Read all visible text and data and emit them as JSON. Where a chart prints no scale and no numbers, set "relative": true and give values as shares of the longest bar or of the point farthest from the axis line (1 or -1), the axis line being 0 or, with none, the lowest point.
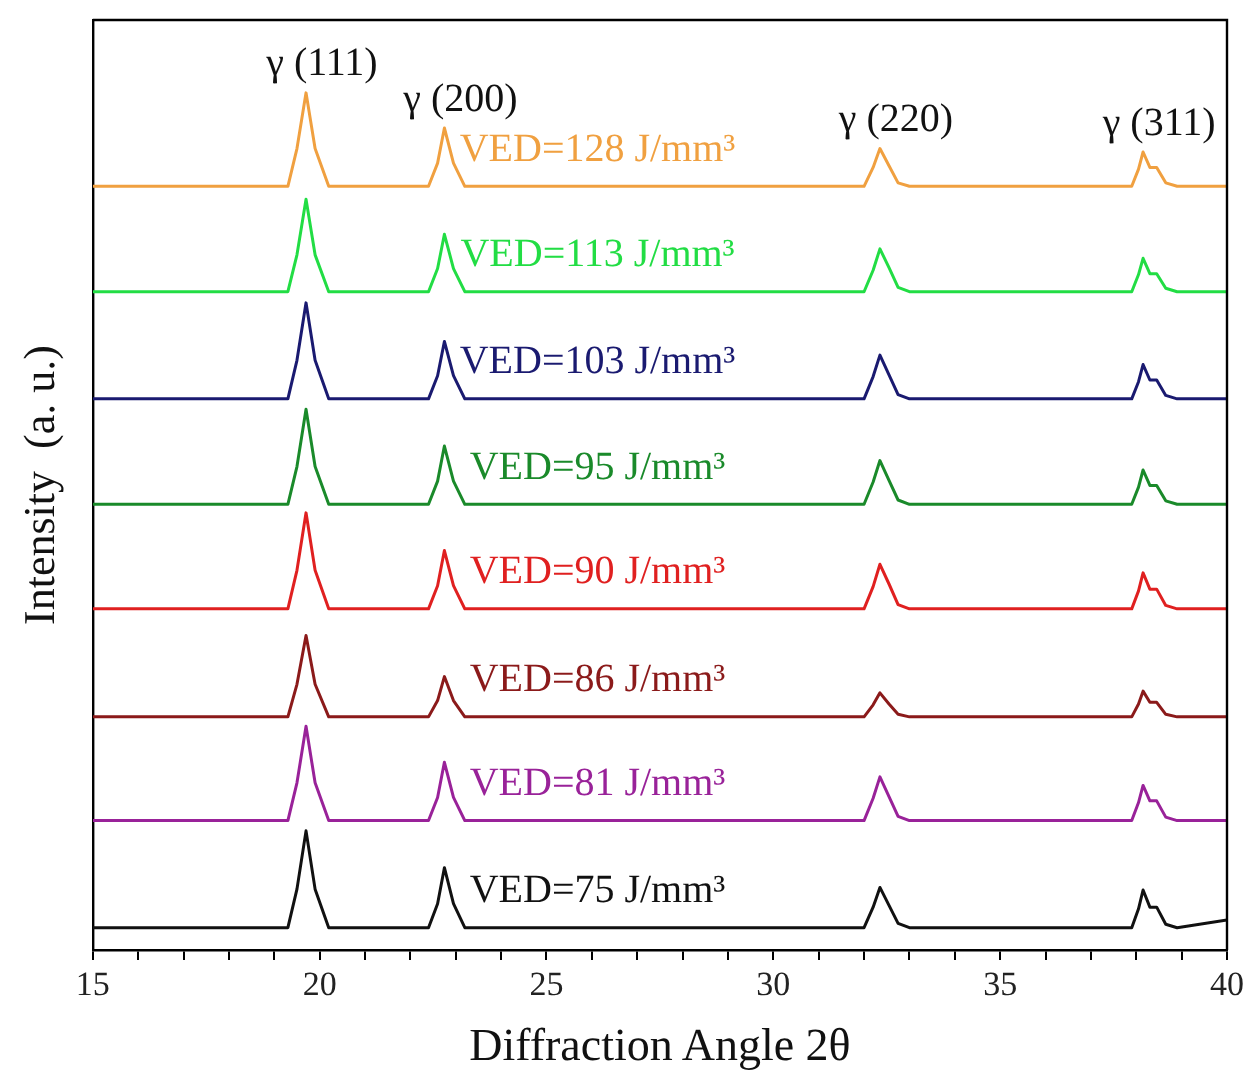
{
  "chart_data": {
    "type": "line",
    "relative": true,
    "xlabel": "Diffraction Angle 2θ",
    "ylabel": "Intensity  (a. u.)",
    "x": [
      15,
      19.3,
      19.5,
      19.7,
      19.9,
      20.2,
      22.4,
      22.6,
      22.75,
      22.95,
      23.2,
      32.0,
      32.2,
      32.35,
      32.55,
      32.75,
      33.0,
      37.9,
      38.05,
      38.15,
      38.3,
      38.45,
      38.65,
      38.9,
      40
    ],
    "xlim": [
      15,
      40
    ],
    "xticks": [
      15,
      {
        "value": 16,
        "label": null
      },
      {
        "value": 17,
        "label": null
      },
      {
        "value": 18,
        "label": null
      },
      {
        "value": 19,
        "label": null
      },
      20,
      {
        "value": 21,
        "label": null
      },
      {
        "value": 22,
        "label": null
      },
      {
        "value": 23,
        "label": null
      },
      {
        "value": 24,
        "label": null
      },
      25,
      {
        "value": 26,
        "label": null
      },
      {
        "value": 27,
        "label": null
      },
      {
        "value": 28,
        "label": null
      },
      {
        "value": 29,
        "label": null
      },
      30,
      {
        "value": 31,
        "label": null
      },
      {
        "value": 32,
        "label": null
      },
      {
        "value": 33,
        "label": null
      },
      {
        "value": 34,
        "label": null
      },
      35,
      {
        "value": 36,
        "label": null
      },
      {
        "value": 37,
        "label": null
      },
      {
        "value": 38,
        "label": null
      },
      {
        "value": 39,
        "label": null
      },
      40
    ],
    "tick_labels": "x",
    "grid": false,
    "legend": false,
    "marker": "none",
    "line_style": "solid",
    "series": [
      {
        "name": "VED=128 J/mm³",
        "color": "#f0a040",
        "values": [
          0.891,
          0.891,
          0.935,
          1.0,
          0.935,
          0.891,
          0.891,
          0.918,
          0.959,
          0.918,
          0.891,
          0.891,
          0.913,
          0.935,
          0.915,
          0.895,
          0.891,
          0.891,
          0.911,
          0.931,
          0.913,
          0.913,
          0.895,
          0.891,
          0.891
        ]
      },
      {
        "name": "VED=113 J/mm³",
        "color": "#22dd44",
        "values": [
          0.768,
          0.768,
          0.811,
          0.876,
          0.811,
          0.768,
          0.768,
          0.795,
          0.835,
          0.795,
          0.768,
          0.768,
          0.793,
          0.818,
          0.796,
          0.773,
          0.768,
          0.768,
          0.788,
          0.807,
          0.789,
          0.789,
          0.772,
          0.768,
          0.768
        ]
      },
      {
        "name": "VED=103 J/mm³",
        "color": "#1a1a70",
        "values": [
          0.643,
          0.643,
          0.688,
          0.755,
          0.688,
          0.643,
          0.643,
          0.67,
          0.71,
          0.67,
          0.643,
          0.643,
          0.669,
          0.694,
          0.671,
          0.648,
          0.643,
          0.643,
          0.663,
          0.683,
          0.665,
          0.665,
          0.647,
          0.643,
          0.643
        ]
      },
      {
        "name": "VED=95 J/mm³",
        "color": "#1a8a2a",
        "values": [
          0.52,
          0.52,
          0.564,
          0.631,
          0.564,
          0.52,
          0.52,
          0.547,
          0.588,
          0.547,
          0.52,
          0.52,
          0.546,
          0.571,
          0.548,
          0.525,
          0.52,
          0.52,
          0.54,
          0.56,
          0.542,
          0.542,
          0.524,
          0.52,
          0.52
        ]
      },
      {
        "name": "VED=90 J/mm³",
        "color": "#e02020",
        "values": [
          0.398,
          0.398,
          0.443,
          0.51,
          0.443,
          0.398,
          0.398,
          0.425,
          0.466,
          0.425,
          0.398,
          0.398,
          0.424,
          0.45,
          0.427,
          0.403,
          0.398,
          0.398,
          0.419,
          0.44,
          0.421,
          0.421,
          0.402,
          0.398,
          0.398
        ]
      },
      {
        "name": "VED=86 J/mm³",
        "color": "#8b1a1a",
        "values": [
          0.272,
          0.272,
          0.31,
          0.367,
          0.31,
          0.272,
          0.272,
          0.291,
          0.319,
          0.291,
          0.272,
          0.272,
          0.286,
          0.3,
          0.287,
          0.275,
          0.272,
          0.272,
          0.287,
          0.302,
          0.289,
          0.289,
          0.275,
          0.272,
          0.272
        ]
      },
      {
        "name": "VED=81 J/mm³",
        "color": "#992299",
        "values": [
          0.151,
          0.151,
          0.195,
          0.261,
          0.195,
          0.151,
          0.151,
          0.178,
          0.219,
          0.178,
          0.151,
          0.151,
          0.177,
          0.202,
          0.179,
          0.156,
          0.151,
          0.151,
          0.172,
          0.192,
          0.174,
          0.174,
          0.155,
          0.151,
          0.151
        ]
      },
      {
        "name": "VED=75 J/mm³",
        "color": "#111111",
        "values": [
          0.026,
          0.026,
          0.071,
          0.139,
          0.071,
          0.026,
          0.026,
          0.054,
          0.096,
          0.054,
          0.026,
          0.026,
          0.05,
          0.073,
          0.052,
          0.031,
          0.026,
          0.026,
          0.048,
          0.07,
          0.05,
          0.05,
          0.03,
          0.026,
          0.035
        ]
      }
    ],
    "annotations": [
      {
        "text": "γ (111)",
        "x": 19.7,
        "y": 1.0
      },
      {
        "text": "γ (200)",
        "x": 22.75,
        "y": 0.959
      },
      {
        "text": "γ (220)",
        "x": 32.35,
        "y": 0.935
      },
      {
        "text": "γ (311)",
        "x": 38.15,
        "y": 0.931
      }
    ]
  }
}
